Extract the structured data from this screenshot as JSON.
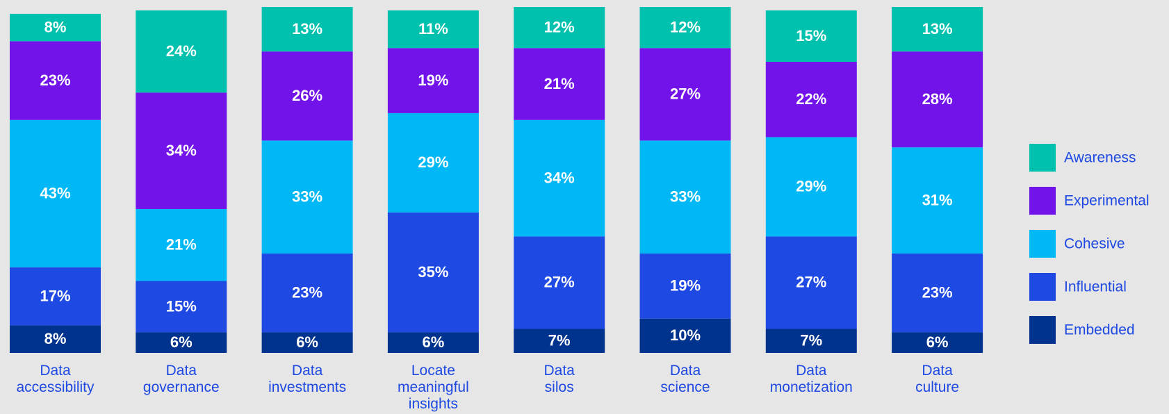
{
  "chart_data": {
    "type": "stacked_bar",
    "categories": [
      "Data accessibility",
      "Data governance",
      "Data investments",
      "Locate meaningful insights",
      "Data silos",
      "Data science",
      "Data monetization",
      "Data culture"
    ],
    "series": [
      {
        "name": "Embedded",
        "color": "#00338d",
        "values": [
          8,
          6,
          6,
          6,
          7,
          10,
          7,
          6
        ],
        "value_labels": [
          "8%",
          "6%",
          "6%",
          "6%",
          "7%",
          "10%",
          "7%",
          "6%"
        ]
      },
      {
        "name": "Influential",
        "color": "#1e49e2",
        "values": [
          17,
          15,
          23,
          35,
          27,
          19,
          27,
          23
        ],
        "value_labels": [
          "17%",
          "15%",
          "23%",
          "35%",
          "27%",
          "19%",
          "27%",
          "23%"
        ]
      },
      {
        "name": "Cohesive",
        "color": "#00b8f5",
        "values": [
          43,
          21,
          33,
          29,
          34,
          33,
          29,
          31
        ],
        "value_labels": [
          "43%",
          "21%",
          "33%",
          "29%",
          "34%",
          "33%",
          "29%",
          "31%"
        ]
      },
      {
        "name": "Experimental",
        "color": "#7213ea",
        "values": [
          23,
          34,
          26,
          19,
          21,
          27,
          22,
          28
        ],
        "value_labels": [
          "23%",
          "34%",
          "26%",
          "19%",
          "21%",
          "27%",
          "22%",
          "28%"
        ]
      },
      {
        "name": "Awareness",
        "color": "#00c0ae",
        "values": [
          8,
          24,
          13,
          11,
          12,
          12,
          15,
          13
        ],
        "value_labels": [
          "8%",
          "24%",
          "13%",
          "11%",
          "12%",
          "12%",
          "15%",
          "13%"
        ]
      }
    ],
    "legend": "right"
  }
}
